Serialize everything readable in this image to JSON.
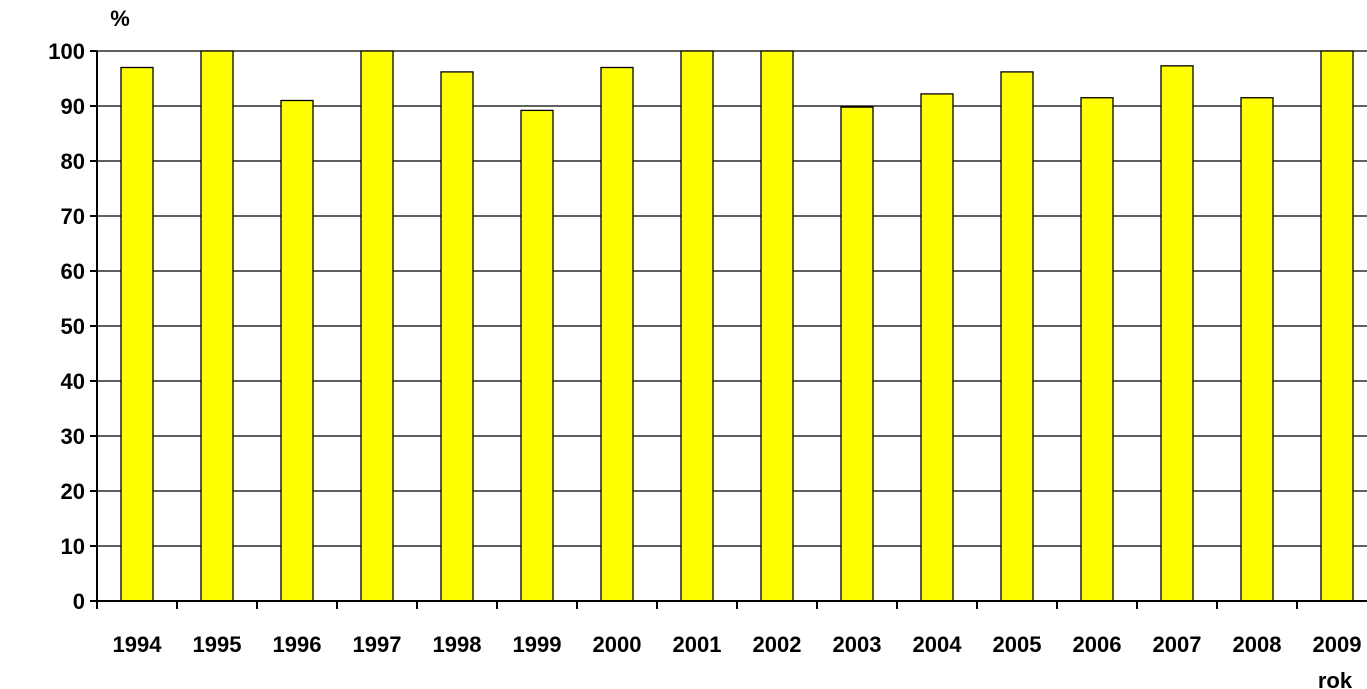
{
  "chart_data": {
    "type": "bar",
    "categories": [
      "1994",
      "1995",
      "1996",
      "1997",
      "1998",
      "1999",
      "2000",
      "2001",
      "2002",
      "2003",
      "2004",
      "2005",
      "2006",
      "2007",
      "2008",
      "2009"
    ],
    "series": [
      {
        "values": [
          97,
          100,
          91,
          100,
          96.2,
          89.2,
          97,
          100,
          100,
          89.8,
          92.2,
          96.2,
          91.5,
          97.3,
          91.5,
          100
        ]
      }
    ],
    "ylabel": "%",
    "xlabel": "rok",
    "ylim": [
      0,
      100
    ],
    "yticks": [
      0,
      10,
      20,
      30,
      40,
      50,
      60,
      70,
      80,
      90,
      100
    ],
    "grid": true,
    "bar_color": "#FFFF00",
    "bar_edge_color": "#000000"
  }
}
